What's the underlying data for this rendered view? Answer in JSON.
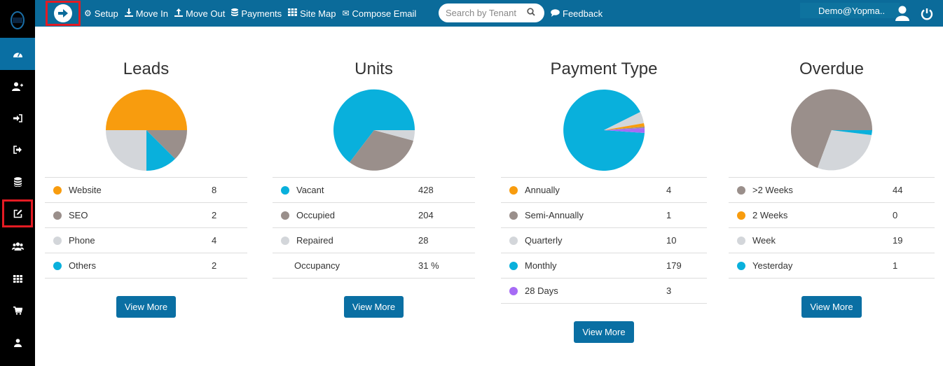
{
  "topbar": {
    "nav": [
      {
        "icon": "gear-icon",
        "label": "Setup"
      },
      {
        "icon": "move-in-icon",
        "label": "Move In"
      },
      {
        "icon": "move-out-icon",
        "label": "Move Out"
      },
      {
        "icon": "database-icon",
        "label": "Payments"
      },
      {
        "icon": "grid-icon",
        "label": "Site Map"
      },
      {
        "icon": "envelope-icon",
        "label": "Compose Email"
      }
    ],
    "search_placeholder": "Search by Tenant",
    "feedback_label": "Feedback",
    "user_label": "Demo@Yopma.."
  },
  "panels": [
    {
      "title": "Leads",
      "rows": [
        {
          "label": "Website",
          "value": "8",
          "color": "#f89c0e"
        },
        {
          "label": "SEO",
          "value": "2",
          "color": "#9a8f8b"
        },
        {
          "label": "Phone",
          "value": "4",
          "color": "#d3d6da"
        },
        {
          "label": "Others",
          "value": "2",
          "color": "#09b0dc"
        }
      ],
      "button": "View More"
    },
    {
      "title": "Units",
      "rows": [
        {
          "label": "Vacant",
          "value": "428",
          "color": "#09b0dc"
        },
        {
          "label": "Occupied",
          "value": "204",
          "color": "#9a8f8b"
        },
        {
          "label": "Repaired",
          "value": "28",
          "color": "#d3d6da"
        },
        {
          "label": "Occupancy",
          "value": "31 %",
          "color": ""
        }
      ],
      "button": "View More"
    },
    {
      "title": "Payment Type",
      "rows": [
        {
          "label": "Annually",
          "value": "4",
          "color": "#f89c0e"
        },
        {
          "label": "Semi-Annually",
          "value": "1",
          "color": "#9a8f8b"
        },
        {
          "label": "Quarterly",
          "value": "10",
          "color": "#d3d6da"
        },
        {
          "label": "Monthly",
          "value": "179",
          "color": "#09b0dc"
        },
        {
          "label": "28 Days",
          "value": "3",
          "color": "#a66bf5"
        }
      ],
      "button": "View More"
    },
    {
      "title": "Overdue",
      "rows": [
        {
          "label": ">2 Weeks",
          "value": "44",
          "color": "#9a8f8b"
        },
        {
          "label": "2 Weeks",
          "value": "0",
          "color": "#f89c0e"
        },
        {
          "label": "Week",
          "value": "19",
          "color": "#d3d6da"
        },
        {
          "label": "Yesterday",
          "value": "1",
          "color": "#09b0dc"
        }
      ],
      "button": "View More"
    }
  ]
}
